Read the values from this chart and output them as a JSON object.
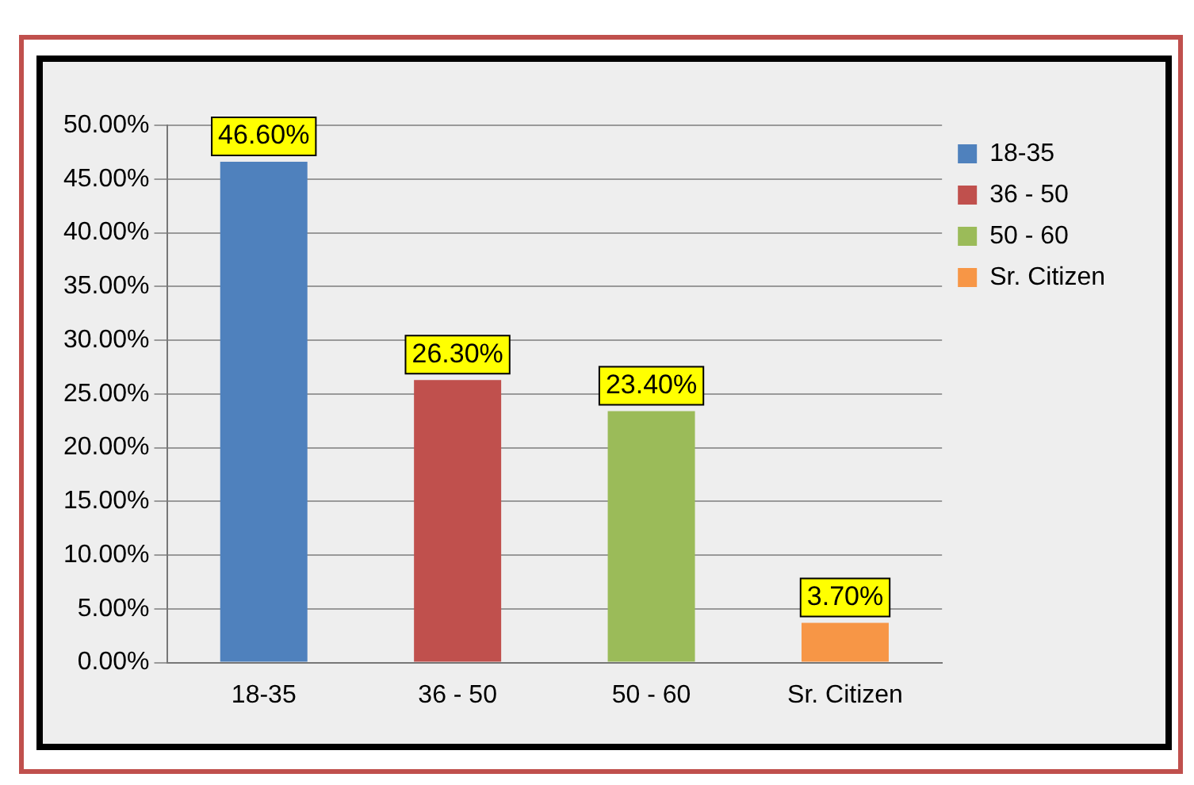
{
  "chart_data": {
    "type": "bar",
    "categories": [
      "18-35",
      "36 - 50",
      "50 - 60",
      "Sr. Citizen"
    ],
    "series": [
      {
        "name": "18-35",
        "color": "#4f81bd",
        "values": [
          46.6,
          null,
          null,
          null
        ],
        "value_labels": [
          "46.60%",
          null,
          null,
          null
        ]
      },
      {
        "name": "36 - 50",
        "color": "#c0504d",
        "values": [
          null,
          26.3,
          null,
          null
        ],
        "value_labels": [
          null,
          "26.30%",
          null,
          null
        ]
      },
      {
        "name": "50 - 60",
        "color": "#9bbb59",
        "values": [
          null,
          null,
          23.4,
          null
        ],
        "value_labels": [
          null,
          null,
          "23.40%",
          null
        ]
      },
      {
        "name": "Sr. Citizen",
        "color": "#f79646",
        "values": [
          null,
          null,
          null,
          3.7
        ],
        "value_labels": [
          null,
          null,
          null,
          "3.70%"
        ]
      }
    ],
    "ylim": [
      0,
      50
    ],
    "yticks": [
      {
        "value": 0,
        "label": "0.00%"
      },
      {
        "value": 5,
        "label": "5.00%"
      },
      {
        "value": 10,
        "label": "10.00%"
      },
      {
        "value": 15,
        "label": "15.00%"
      },
      {
        "value": 20,
        "label": "20.00%"
      },
      {
        "value": 25,
        "label": "25.00%"
      },
      {
        "value": 30,
        "label": "30.00%"
      },
      {
        "value": 35,
        "label": "35.00%"
      },
      {
        "value": 40,
        "label": "40.00%"
      },
      {
        "value": 45,
        "label": "45.00%"
      },
      {
        "value": 50,
        "label": "50.00%"
      }
    ],
    "grid": "y",
    "legend": "top right"
  }
}
